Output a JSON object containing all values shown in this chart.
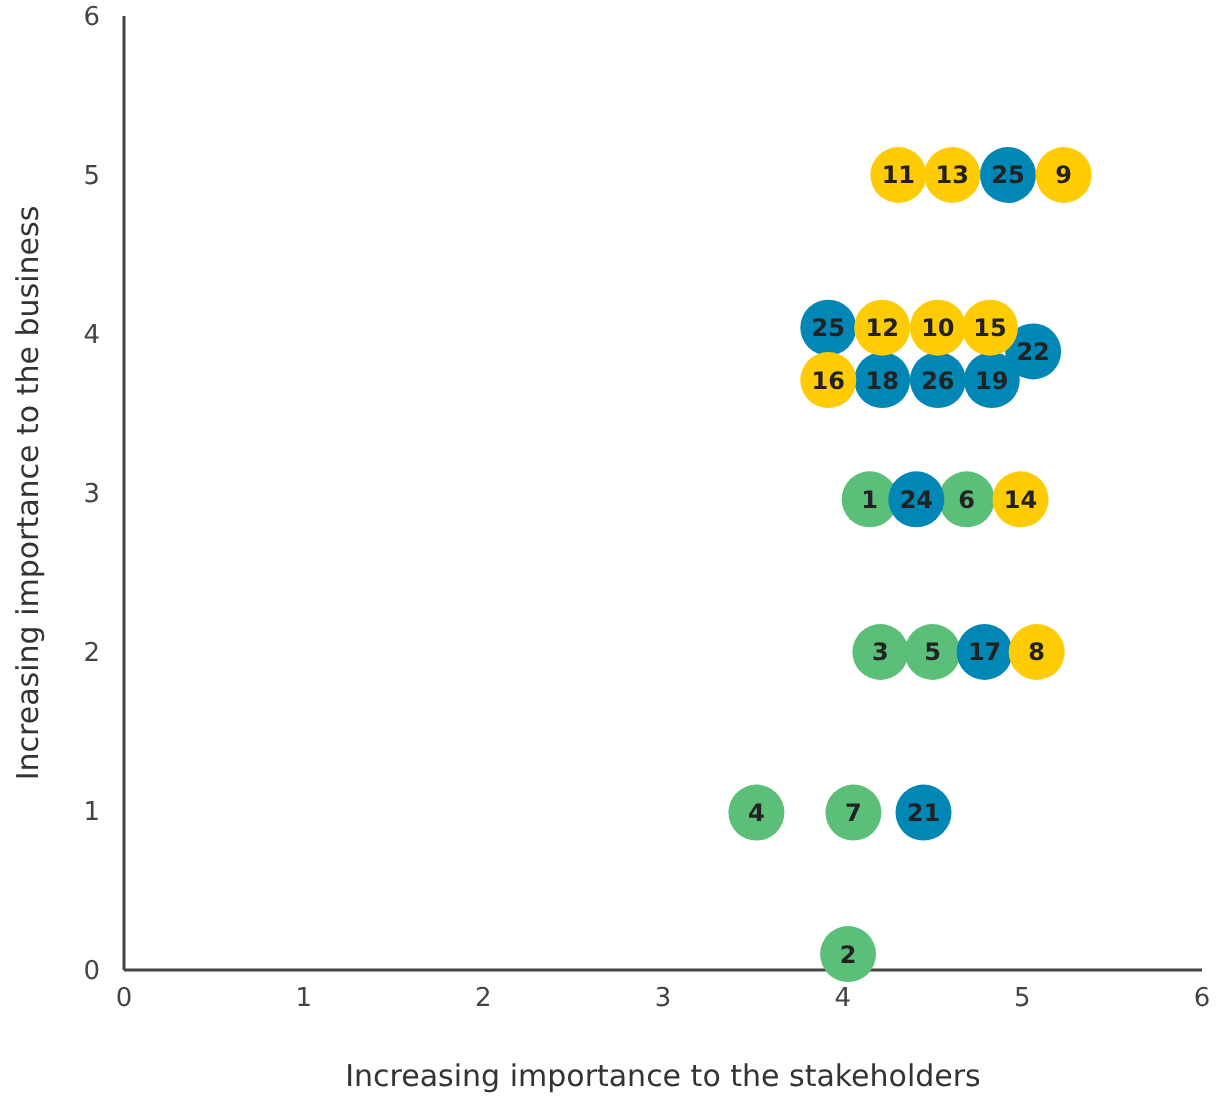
{
  "chart_data": {
    "type": "scatter",
    "xlabel": "Increasing importance to the stakeholders",
    "ylabel": "Increasing importance to the business",
    "xlim": [
      0,
      6
    ],
    "ylim": [
      0,
      6
    ],
    "xticks": [
      0,
      1,
      2,
      3,
      4,
      5,
      6
    ],
    "yticks": [
      0,
      1,
      2,
      3,
      4,
      5,
      6
    ],
    "marker": "circle",
    "series": [
      {
        "color": "#5bbf7a",
        "x": [
          4.15,
          4.69,
          4.21,
          4.5,
          3.52,
          4.06,
          4.03
        ],
        "values": [
          2.96,
          2.96,
          2.0,
          2.0,
          0.99,
          0.99,
          0.1
        ]
      },
      {
        "color": "#0087b5",
        "x": [
          4.92,
          3.92,
          5.06,
          4.22,
          4.53,
          4.83,
          4.41,
          4.79,
          4.45
        ],
        "values": [
          5.0,
          4.04,
          3.89,
          3.71,
          3.71,
          3.71,
          2.96,
          2.0,
          0.99
        ]
      },
      {
        "color": "#ffcb05",
        "x": [
          4.31,
          4.61,
          5.23,
          4.22,
          4.53,
          4.82,
          3.92,
          4.99,
          5.08
        ],
        "values": [
          5.0,
          5.0,
          5.0,
          4.04,
          4.04,
          4.04,
          3.71,
          2.96,
          2.0
        ]
      }
    ],
    "annotations": [
      {
        "text": "11",
        "x": 4.31,
        "y": 5.0
      },
      {
        "text": "13",
        "x": 4.61,
        "y": 5.0
      },
      {
        "text": "25",
        "x": 4.92,
        "y": 5.0
      },
      {
        "text": "9",
        "x": 5.23,
        "y": 5.0
      },
      {
        "text": "25",
        "x": 3.92,
        "y": 4.04
      },
      {
        "text": "12",
        "x": 4.22,
        "y": 4.04
      },
      {
        "text": "10",
        "x": 4.53,
        "y": 4.04
      },
      {
        "text": "15",
        "x": 4.82,
        "y": 4.04
      },
      {
        "text": "22",
        "x": 5.06,
        "y": 3.89
      },
      {
        "text": "16",
        "x": 3.92,
        "y": 3.71
      },
      {
        "text": "18",
        "x": 4.22,
        "y": 3.71
      },
      {
        "text": "26",
        "x": 4.53,
        "y": 3.71
      },
      {
        "text": "19",
        "x": 4.83,
        "y": 3.71
      },
      {
        "text": "1",
        "x": 4.15,
        "y": 2.96
      },
      {
        "text": "24",
        "x": 4.41,
        "y": 2.96
      },
      {
        "text": "6",
        "x": 4.69,
        "y": 2.96
      },
      {
        "text": "14",
        "x": 4.99,
        "y": 2.96
      },
      {
        "text": "3",
        "x": 4.21,
        "y": 2.0
      },
      {
        "text": "5",
        "x": 4.5,
        "y": 2.0
      },
      {
        "text": "17",
        "x": 4.79,
        "y": 2.0
      },
      {
        "text": "8",
        "x": 5.08,
        "y": 2.0
      },
      {
        "text": "4",
        "x": 3.52,
        "y": 0.99
      },
      {
        "text": "7",
        "x": 4.06,
        "y": 0.99
      },
      {
        "text": "21",
        "x": 4.45,
        "y": 0.99
      },
      {
        "text": "2",
        "x": 4.03,
        "y": 0.1
      }
    ]
  }
}
